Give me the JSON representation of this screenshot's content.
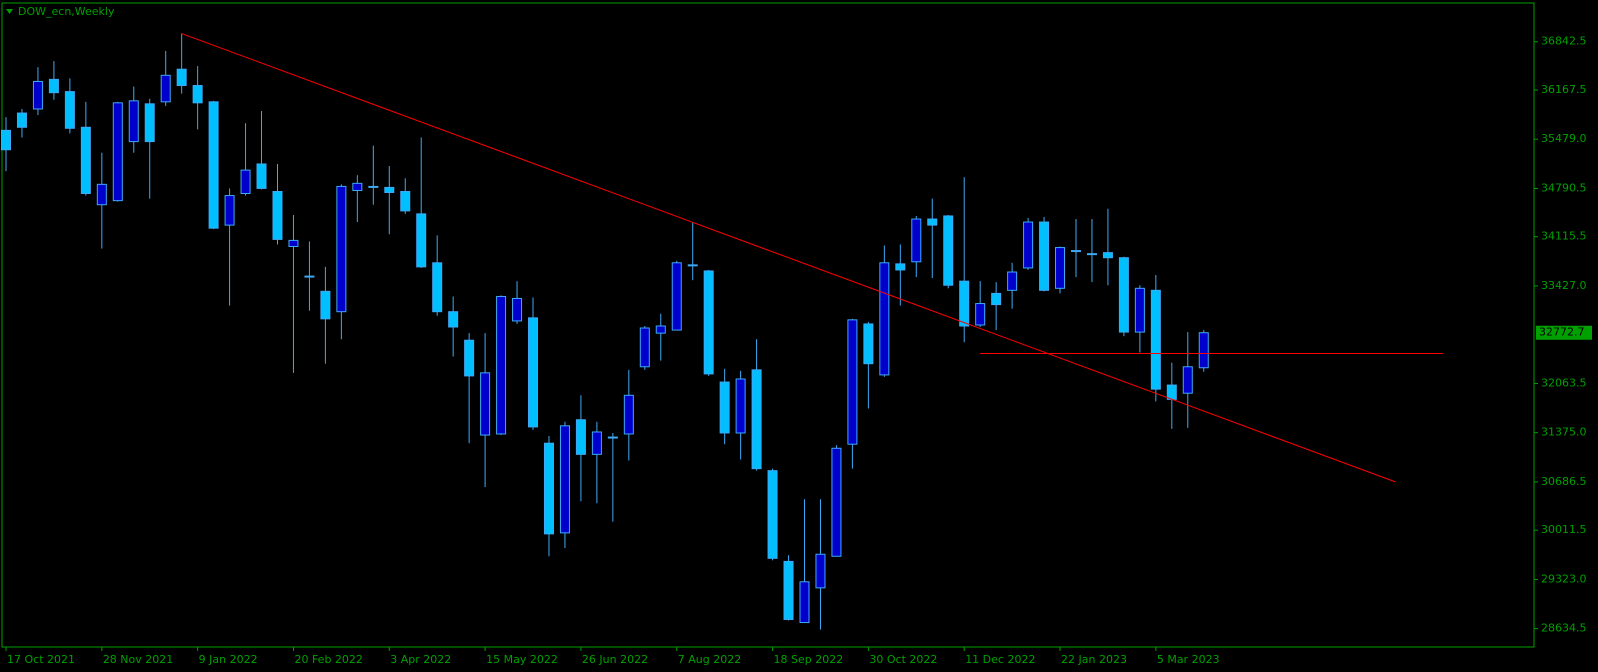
{
  "chart_data": {
    "type": "candlestick",
    "title": "DOW_ecn,Weekly",
    "categories": [
      "17 Oct 2021",
      null,
      null,
      null,
      null,
      null,
      "28 Nov 2021",
      null,
      null,
      null,
      null,
      null,
      "9 Jan 2022",
      null,
      null,
      null,
      null,
      null,
      "20 Feb 2022",
      null,
      null,
      null,
      null,
      null,
      "3 Apr 2022",
      null,
      null,
      null,
      null,
      null,
      "15 May 2022",
      null,
      null,
      null,
      null,
      null,
      "26 Jun 2022",
      null,
      null,
      null,
      null,
      null,
      "7 Aug 2022",
      null,
      null,
      null,
      null,
      null,
      "18 Sep 2022",
      null,
      null,
      null,
      null,
      null,
      "30 Oct 2022",
      null,
      null,
      null,
      null,
      null,
      "11 Dec 2022",
      null,
      null,
      null,
      null,
      null,
      "22 Jan 2023",
      null,
      null,
      null,
      null,
      null,
      "5 Mar 2023",
      null,
      null,
      null
    ],
    "open": [
      35603,
      35845,
      35902,
      36316,
      36145,
      35646,
      34563,
      34620,
      35446,
      35974,
      36002,
      36458,
      36230,
      36002,
      34278,
      34720,
      35133,
      34748,
      33979,
      33565,
      33352,
      33067,
      34762,
      34819,
      34805,
      34748,
      34435,
      33751,
      33067,
      32668,
      31342,
      31357,
      32938,
      32981,
      31228,
      29974,
      31556,
      31072,
      31314,
      31357,
      32297,
      32767,
      32810,
      33722,
      33637,
      32083,
      31371,
      32254,
      30844,
      29575,
      28720,
      29205,
      29647,
      31214,
      32896,
      32183,
      33736,
      33765,
      34363,
      34406,
      33494,
      32881,
      33323,
      33366,
      33679,
      34321,
      33394,
      33922,
      33879,
      33893,
      33822,
      32782,
      33366,
      32041,
      31927,
      32283
    ],
    "high": [
      35788,
      35902,
      36487,
      36572,
      36330,
      36002,
      35290,
      36002,
      36216,
      36045,
      36715,
      36957,
      36501,
      36016,
      34791,
      35703,
      35874,
      35133,
      34420,
      34050,
      33694,
      34848,
      34976,
      35389,
      35104,
      34933,
      35503,
      34135,
      33280,
      32767,
      32767,
      33295,
      33494,
      33266,
      31328,
      31528,
      31898,
      31528,
      31371,
      32254,
      32867,
      33038,
      33779,
      34321,
      33651,
      32269,
      32240,
      32682,
      30872,
      29661,
      30445,
      30445,
      31200,
      32967,
      32924,
      33993,
      34007,
      34406,
      34648,
      34420,
      34948,
      33494,
      33480,
      33751,
      34378,
      34392,
      33979,
      34363,
      34363,
      34506,
      33836,
      33437,
      33580,
      32354,
      32782,
      32810
    ],
    "low": [
      35033,
      35503,
      35817,
      36031,
      35560,
      34691,
      33950,
      34606,
      35290,
      34648,
      35945,
      36116,
      35617,
      34221,
      33152,
      34691,
      34777,
      34007,
      32212,
      33081,
      32340,
      32682,
      34321,
      34563,
      34150,
      34435,
      33679,
      33010,
      32440,
      31228,
      30616,
      31342,
      32896,
      31414,
      29647,
      29761,
      30416,
      30388,
      30131,
      30986,
      32254,
      32383,
      32810,
      33508,
      32169,
      31214,
      31000,
      30844,
      29590,
      28749,
      28720,
      28621,
      29647,
      30872,
      31713,
      32155,
      33152,
      33551,
      33537,
      33394,
      32639,
      32853,
      32810,
      33109,
      33651,
      33352,
      33323,
      33551,
      33480,
      33437,
      32725,
      32497,
      31813,
      31428,
      31442,
      32226
    ],
    "close": [
      35332,
      35646,
      36287,
      36130,
      35632,
      34720,
      34848,
      35988,
      36016,
      35446,
      36373,
      36230,
      35988,
      34235,
      34691,
      35047,
      34791,
      34078,
      34064,
      33565,
      32967,
      34819,
      34862,
      34819,
      34734,
      34477,
      33694,
      33067,
      32853,
      32169,
      32212,
      33280,
      33252,
      31456,
      29960,
      31471,
      31072,
      31385,
      31314,
      31898,
      32839,
      32867,
      33751,
      33722,
      32197,
      31371,
      32126,
      30872,
      29618,
      28763,
      29290,
      29675,
      31157,
      32953,
      32340,
      33751,
      33651,
      34363,
      34278,
      33437,
      32867,
      33181,
      33166,
      33622,
      34321,
      33366,
      33964,
      33922,
      33879,
      33822,
      32782,
      33394,
      31984,
      31841,
      32297,
      32773
    ],
    "current_price": 32772.7,
    "trendlines": [
      {
        "x": [
          11,
          87
        ],
        "y": [
          36957,
          30687
        ]
      },
      {
        "x": [
          61,
          90
        ],
        "y": [
          32482,
          32482
        ]
      }
    ],
    "ylim": [
      28378,
      37384
    ],
    "yticks": [
      36842.5,
      36167.5,
      {
        "value": 35479,
        "label": "35479.0"
      },
      34790.5,
      34115.5,
      {
        "value": 33427,
        "label": "33427.0"
      },
      32063.5,
      {
        "value": 31375,
        "label": "31375.0"
      },
      30686.5,
      30011.5,
      {
        "value": 29323,
        "label": "29323.0"
      },
      28634.5
    ],
    "up_color": "#0000cd",
    "down_color": "#00bfff",
    "wick_color": "#3fa9f5",
    "trendline_color": "#ff0000",
    "axis_color": "#00a000",
    "text_color": "#00a000",
    "price_box_color": "#00a000"
  }
}
